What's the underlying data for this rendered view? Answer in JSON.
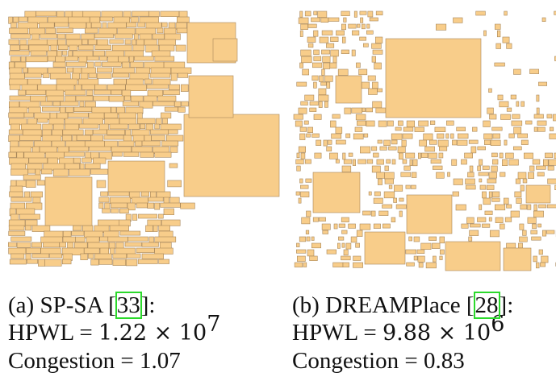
{
  "colors": {
    "block_fill": "#f8cd8a",
    "block_stroke": "#a8875a",
    "citation_box": "#2bd92b"
  },
  "panels": [
    {
      "id": "a",
      "method": "SP-SA",
      "label": "(a)",
      "citation": "33",
      "hpwl": {
        "prefix": "HPWL = ",
        "mantissa": "1.22",
        "times": " × 10",
        "exponent": "7"
      },
      "congestion": "Congestion = 1.07"
    },
    {
      "id": "b",
      "method": "DREAMPlace",
      "label": "(b)",
      "citation": "28",
      "hpwl": {
        "prefix": "HPWL = ",
        "mantissa": "9.88",
        "times": " × 10",
        "exponent": "6"
      },
      "congestion": "Congestion = 0.83"
    }
  ]
}
